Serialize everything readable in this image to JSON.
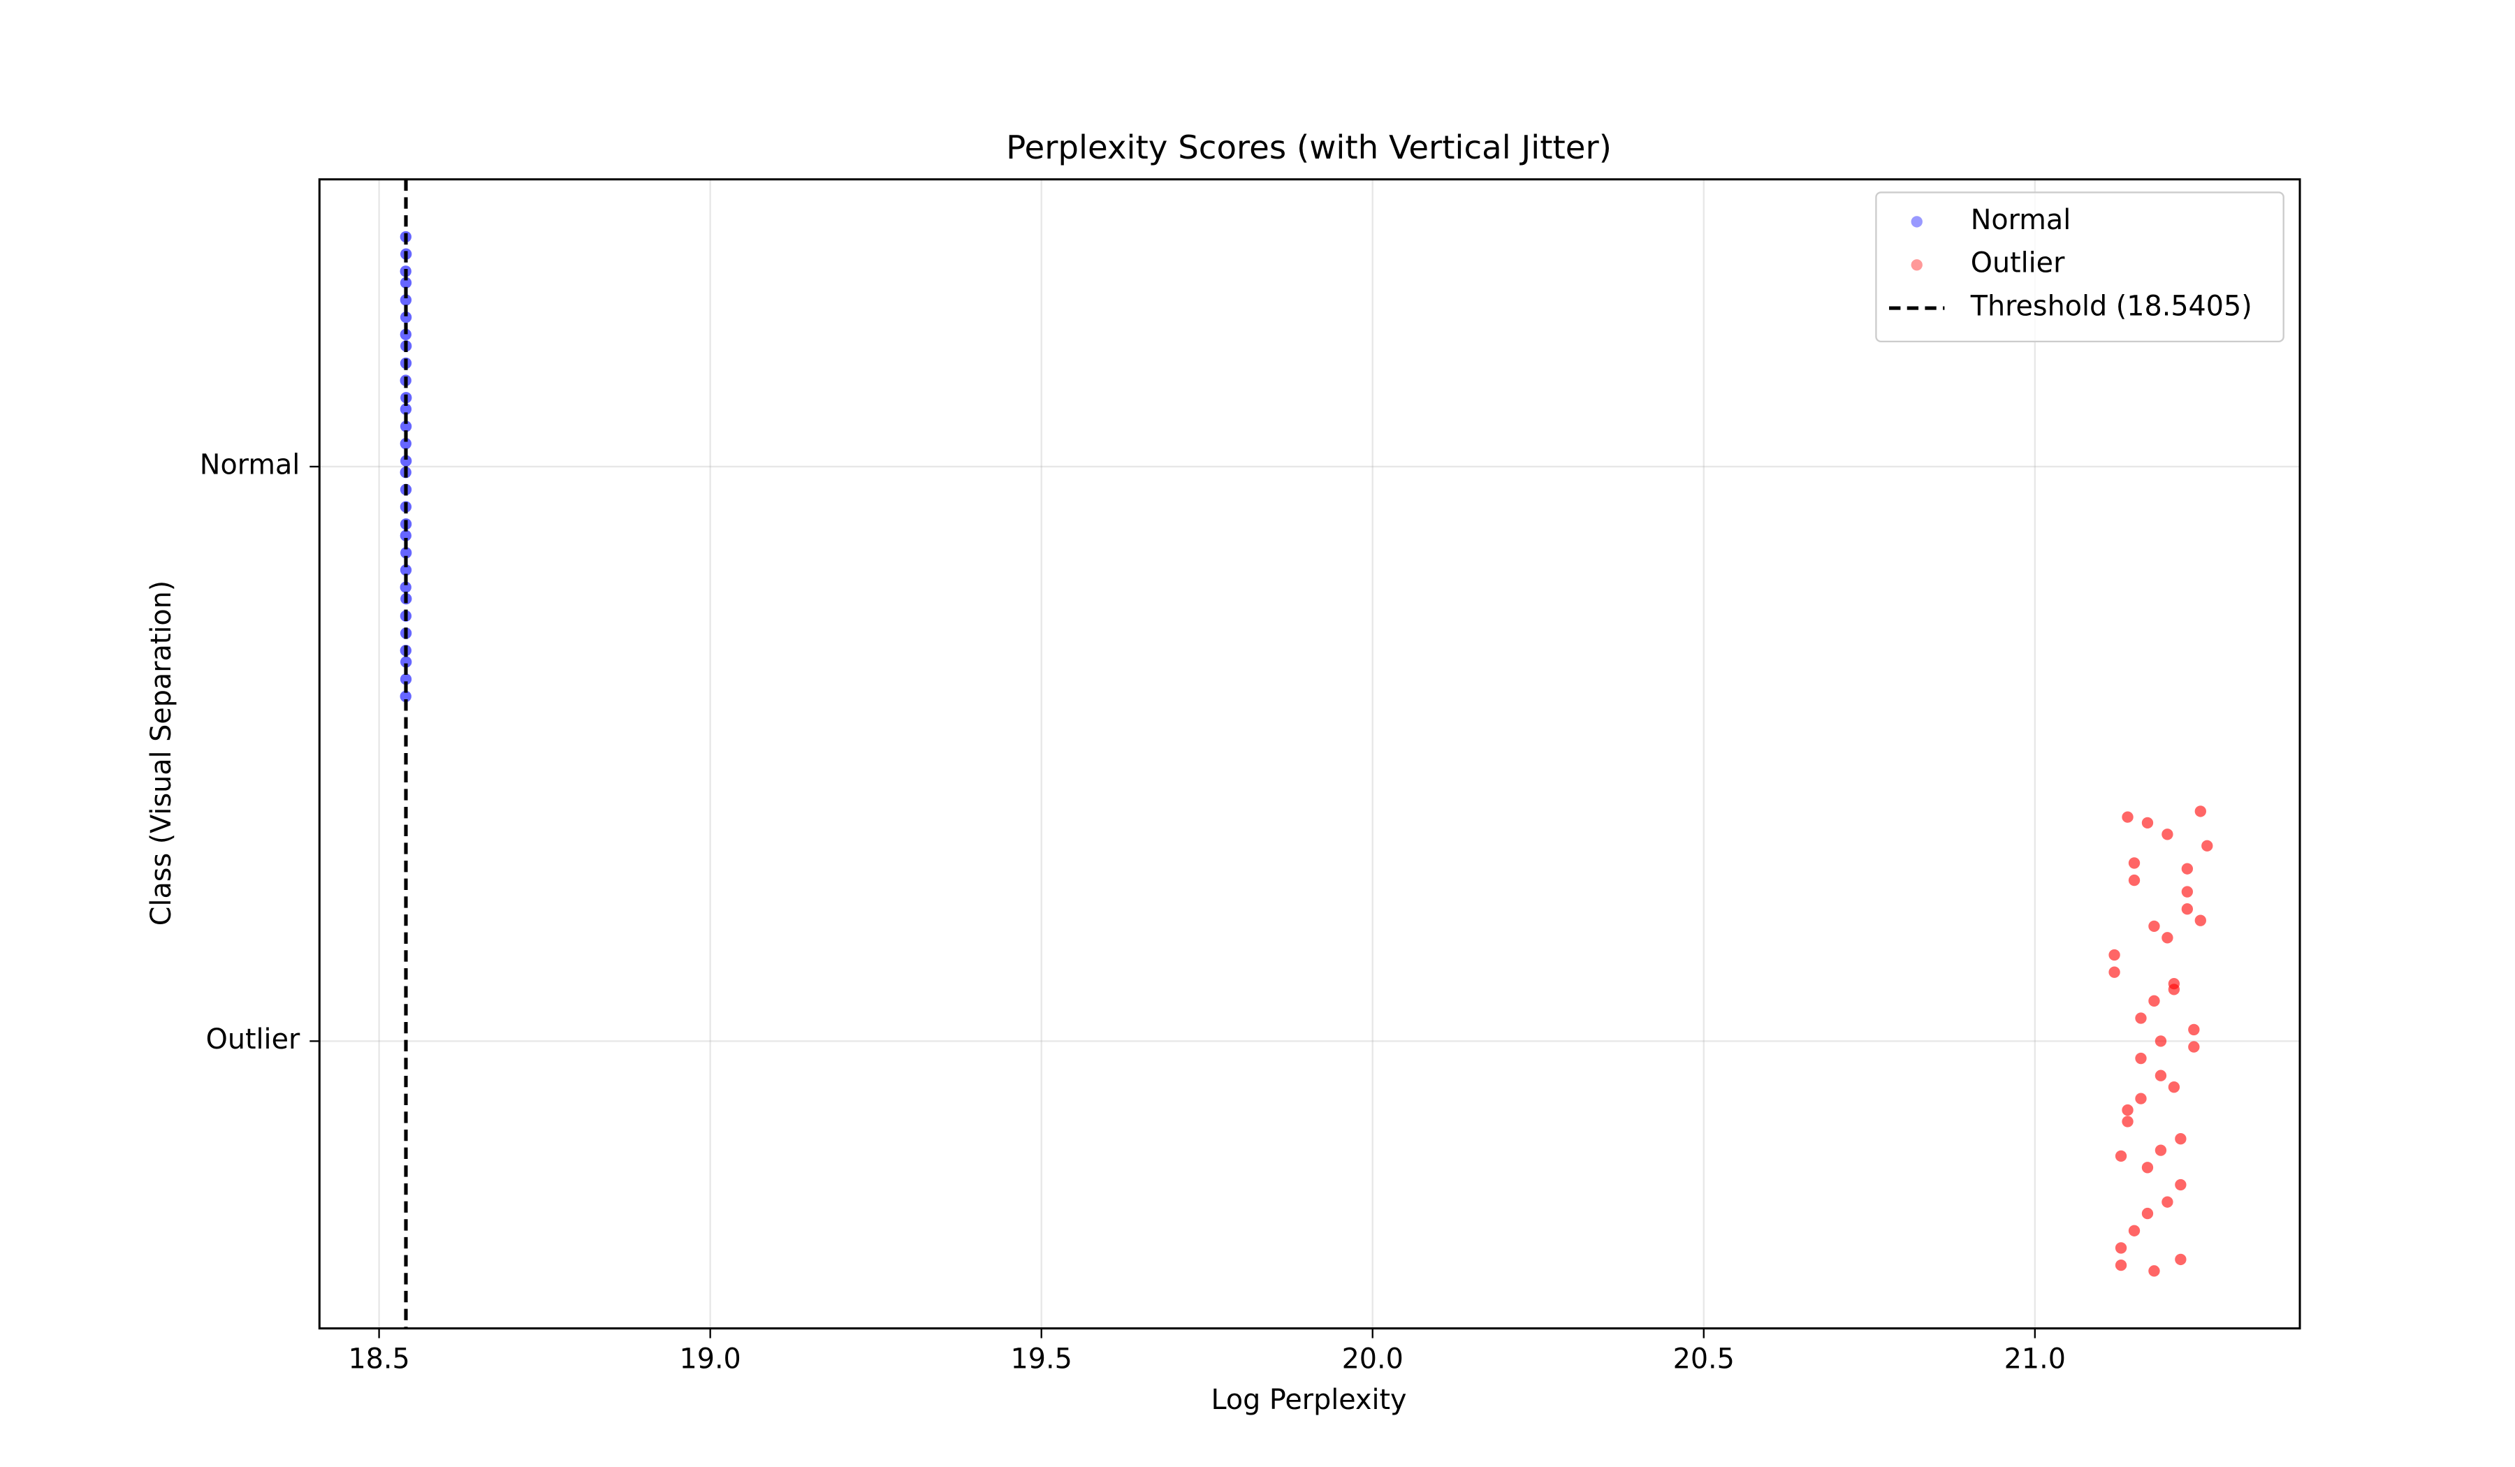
{
  "chart_data": {
    "type": "scatter",
    "title": "Perplexity Scores (with Vertical Jitter)",
    "x_label": "Log Perplexity",
    "y_label": "Class (Visual Separation)",
    "xlim": [
      18.41,
      21.4
    ],
    "ylim": [
      -0.5,
      1.5
    ],
    "xticks": [
      {
        "value": 18.5,
        "label": "18.5"
      },
      {
        "value": 19,
        "label": "19.0"
      },
      {
        "value": 19.5,
        "label": "19.5"
      },
      {
        "value": 20,
        "label": "20.0"
      },
      {
        "value": 20.5,
        "label": "20.5"
      },
      {
        "value": 21,
        "label": "21.0"
      }
    ],
    "yticks": [
      {
        "value": 1,
        "label": "Normal"
      },
      {
        "value": 0,
        "label": "Outlier"
      }
    ],
    "grid": true,
    "legend": "upper right",
    "threshold": {
      "value": 18.5405,
      "label": "Threshold (18.5405)",
      "color": "#000000"
    },
    "series": [
      {
        "name": "Normal",
        "color": "#0000ff",
        "x": [
          18.5402,
          18.5405,
          18.5407,
          18.5403,
          18.5406,
          18.5404,
          18.5408,
          18.5402,
          18.5405,
          18.5407,
          18.5403,
          18.5406,
          18.5404,
          18.5405,
          18.5402,
          18.5407,
          18.5403,
          18.5406,
          18.5404,
          18.5408,
          18.5402,
          18.5405,
          18.5407,
          18.5403,
          18.5406,
          18.5404,
          18.5405,
          18.5402,
          18.5407,
          18.5403
        ],
        "y": [
          0.6,
          0.63,
          0.66,
          0.68,
          0.71,
          0.74,
          0.77,
          0.79,
          0.82,
          0.85,
          0.88,
          0.9,
          0.93,
          0.96,
          0.99,
          1.01,
          1.04,
          1.07,
          1.1,
          1.12,
          1.15,
          1.18,
          1.21,
          1.23,
          1.26,
          1.29,
          1.32,
          1.34,
          1.37,
          1.4
        ]
      },
      {
        "name": "Outlier",
        "color": "#ff0000",
        "x": [
          21.13,
          21.15,
          21.2,
          21.17,
          21.22,
          21.14,
          21.19,
          21.24,
          21.16,
          21.21,
          21.12,
          21.18,
          21.23,
          21.15,
          21.2,
          21.25,
          21.13,
          21.17,
          21.22,
          21.19,
          21.14,
          21.21,
          21.16,
          21.24,
          21.18,
          21.12,
          21.2,
          21.23,
          21.15,
          21.26,
          21.17,
          21.22,
          21.13,
          21.19,
          21.25,
          21.16,
          21.21,
          21.14,
          21.18,
          21.23
        ],
        "y": [
          -0.39,
          -0.33,
          -0.28,
          -0.22,
          -0.17,
          -0.12,
          -0.06,
          -0.01,
          0.04,
          0.09,
          0.15,
          0.2,
          0.26,
          0.31,
          0.36,
          0.4,
          -0.36,
          -0.3,
          -0.25,
          -0.19,
          -0.14,
          -0.08,
          -0.03,
          0.02,
          0.07,
          0.12,
          0.18,
          0.23,
          0.28,
          0.34,
          0.38,
          -0.38,
          -0.2,
          0.0,
          0.21,
          -0.1,
          0.1,
          0.39,
          -0.4,
          0.3
        ]
      }
    ]
  }
}
